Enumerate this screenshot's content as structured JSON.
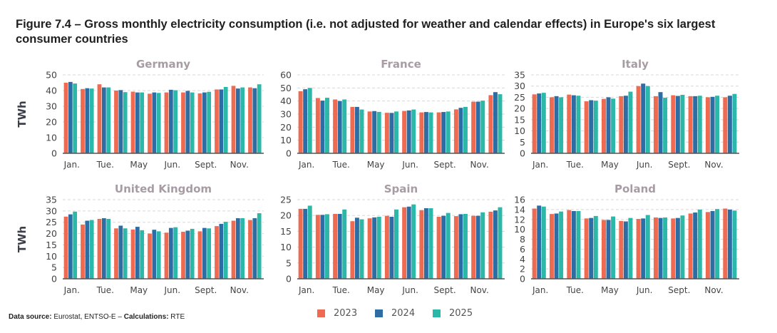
{
  "title": "Figure 7.4 – Gross monthly electricity consumption (i.e. not adjusted for weather and calendar effects) in Europe's six largest consumer countries",
  "footer": {
    "source_label": "Data source:",
    "source_value": " Eurostat, ENTSO-E – ",
    "calc_label": "Calculations:",
    "calc_value": " RTE"
  },
  "legend": [
    {
      "name": "2023",
      "color": "#EE6A50"
    },
    {
      "name": "2024",
      "color": "#2E6DA4"
    },
    {
      "name": "2025",
      "color": "#2BB8A8"
    }
  ],
  "chart_data": [
    {
      "type": "bar",
      "title": "Germany",
      "ylabel": "TWh",
      "ylim": [
        0,
        50
      ],
      "yticks": [
        0,
        10,
        20,
        30,
        40,
        50
      ],
      "grid": true,
      "categories": [
        "Jan.",
        "",
        "Tue.",
        "",
        "May",
        "",
        "Jun.",
        "",
        "Sept.",
        "",
        "Nov.",
        ""
      ],
      "series": [
        {
          "name": "2023",
          "values": [
            45,
            41,
            44,
            40,
            39.3,
            38,
            38.8,
            38.8,
            38.2,
            40.7,
            43,
            42
          ]
        },
        {
          "name": "2024",
          "values": [
            45.5,
            41.5,
            42,
            40.3,
            38.8,
            38.8,
            40.5,
            39.8,
            38.8,
            40.7,
            41.3,
            41.5
          ]
        },
        {
          "name": "2025",
          "values": [
            44.5,
            41.3,
            42,
            39,
            38.8,
            38.5,
            40.2,
            38.8,
            39.2,
            42.3,
            42,
            44
          ]
        }
      ]
    },
    {
      "type": "bar",
      "title": "France",
      "ylabel": "",
      "ylim": [
        0,
        60
      ],
      "yticks": [
        0,
        10,
        20,
        30,
        40,
        50,
        60
      ],
      "grid": true,
      "categories": [
        "Jan.",
        "",
        "Tue.",
        "",
        "May",
        "",
        "Jun.",
        "",
        "Sept.",
        "",
        "Nov.",
        ""
      ],
      "series": [
        {
          "name": "2023",
          "values": [
            47.5,
            42.3,
            41.2,
            35.5,
            32,
            31,
            32.4,
            31.3,
            31.3,
            33.6,
            39.5,
            44.5
          ]
        },
        {
          "name": "2024",
          "values": [
            49,
            40.3,
            40,
            35.5,
            32.3,
            30.9,
            32.8,
            31.6,
            31.6,
            34.8,
            39.5,
            46.8
          ]
        },
        {
          "name": "2025",
          "values": [
            50,
            42.5,
            41.2,
            33.5,
            31.7,
            32,
            33.5,
            31.3,
            32,
            35.5,
            40.3,
            45.2
          ]
        }
      ]
    },
    {
      "type": "bar",
      "title": "Italy",
      "ylabel": "",
      "ylim": [
        0,
        35
      ],
      "yticks": [
        0,
        5,
        10,
        15,
        20,
        25,
        30,
        35
      ],
      "grid": true,
      "categories": [
        "Jan.",
        "",
        "Tue.",
        "",
        "May",
        "",
        "Jun.",
        "",
        "Sept.",
        "",
        "Nov.",
        ""
      ],
      "series": [
        {
          "name": "2023",
          "values": [
            26.3,
            25,
            26.2,
            23.2,
            24.3,
            25.5,
            30,
            25.5,
            25.9,
            25.5,
            25,
            25
          ]
        },
        {
          "name": "2024",
          "values": [
            26.7,
            25.5,
            25.9,
            23.7,
            25,
            25.7,
            31.1,
            27.3,
            25.6,
            25.5,
            25.2,
            25.7
          ]
        },
        {
          "name": "2025",
          "values": [
            27,
            25,
            25.7,
            23.5,
            24.4,
            27.5,
            30,
            24.8,
            26.1,
            25.7,
            25.7,
            26.5
          ]
        }
      ]
    },
    {
      "type": "bar",
      "title": "United Kingdom",
      "ylabel": "TWh",
      "ylim": [
        0,
        35
      ],
      "yticks": [
        0,
        5,
        10,
        15,
        20,
        25,
        30,
        35
      ],
      "grid": true,
      "categories": [
        "Jan.",
        "",
        "Tue.",
        "",
        "May",
        "",
        "Jun.",
        "",
        "Sept.",
        "",
        "Nov.",
        ""
      ],
      "series": [
        {
          "name": "2023",
          "values": [
            27.5,
            24,
            26.5,
            22.3,
            21.8,
            20,
            20.4,
            20.8,
            21,
            23.3,
            25.7,
            26
          ]
        },
        {
          "name": "2024",
          "values": [
            28.5,
            25.7,
            26.8,
            23.5,
            23,
            21.7,
            22.5,
            21.3,
            22.5,
            24.3,
            26.8,
            26.8
          ]
        },
        {
          "name": "2025",
          "values": [
            29.7,
            26,
            26.5,
            22.3,
            21.5,
            21,
            22.8,
            22.1,
            22.3,
            25.2,
            26.8,
            29
          ]
        }
      ]
    },
    {
      "type": "bar",
      "title": "Spain",
      "ylabel": "",
      "ylim": [
        0,
        25
      ],
      "yticks": [
        0,
        5,
        10,
        15,
        20,
        25
      ],
      "grid": true,
      "categories": [
        "Jan.",
        "",
        "Tue.",
        "",
        "May",
        "",
        "Jun.",
        "",
        "Sept.",
        "",
        "Nov.",
        ""
      ],
      "series": [
        {
          "name": "2023",
          "values": [
            22.1,
            20.2,
            20.5,
            18.2,
            19.1,
            19.9,
            22.6,
            21.7,
            19.6,
            19.8,
            19.9,
            21.2
          ]
        },
        {
          "name": "2024",
          "values": [
            22.1,
            20.2,
            20.5,
            19.3,
            19.4,
            19.6,
            22.8,
            22.3,
            19.9,
            20.4,
            19.9,
            21.6
          ]
        },
        {
          "name": "2025",
          "values": [
            23.1,
            20.4,
            21.9,
            18.8,
            19.6,
            21.9,
            23.5,
            22.3,
            20.8,
            20.5,
            21,
            22.6
          ]
        }
      ]
    },
    {
      "type": "bar",
      "title": "Poland",
      "ylabel": "",
      "ylim": [
        0,
        16
      ],
      "yticks": [
        0,
        2,
        4,
        6,
        8,
        10,
        12,
        14,
        16
      ],
      "grid": true,
      "categories": [
        "Jan.",
        "",
        "Tue.",
        "",
        "May",
        "",
        "Jun.",
        "",
        "Sept.",
        "",
        "Nov.",
        ""
      ],
      "series": [
        {
          "name": "2023",
          "values": [
            14.2,
            13.1,
            13.9,
            12.2,
            11.9,
            11.7,
            12.1,
            12.4,
            12.2,
            13.2,
            13.5,
            14.2
          ]
        },
        {
          "name": "2024",
          "values": [
            14.8,
            13.2,
            13.7,
            12.3,
            11.9,
            11.6,
            12.2,
            12.3,
            12.3,
            13.4,
            13.7,
            14
          ]
        },
        {
          "name": "2025",
          "values": [
            14.6,
            13.6,
            13.7,
            12.7,
            12.6,
            12.3,
            12.9,
            12.4,
            12.8,
            14,
            14.1,
            13.8
          ]
        }
      ]
    }
  ]
}
